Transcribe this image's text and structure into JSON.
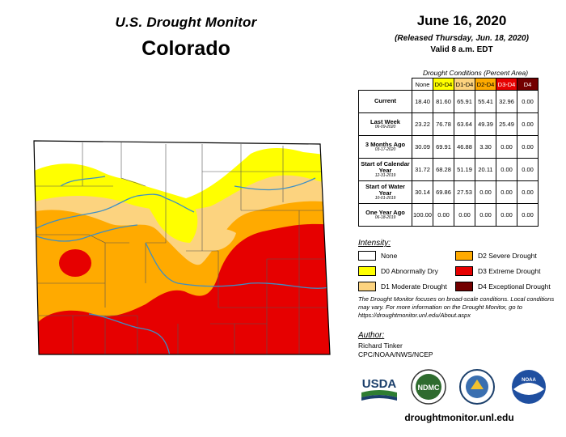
{
  "header": {
    "title": "U.S. Drought Monitor",
    "state": "Colorado",
    "map_date": "June 16, 2020",
    "released": "(Released Thursday, Jun. 18, 2020)",
    "valid": "Valid 8 a.m. EDT"
  },
  "table": {
    "caption": "Drought Conditions (Percent Area)",
    "columns": [
      "None",
      "D0-D4",
      "D1-D4",
      "D2-D4",
      "D3-D4",
      "D4"
    ],
    "column_colors": [
      "#ffffff",
      "#ffff00",
      "#fcd37f",
      "#ffaa00",
      "#e60000",
      "#730000"
    ],
    "rows": [
      {
        "label": "Current",
        "sub": "",
        "values": [
          "18.40",
          "81.60",
          "65.91",
          "55.41",
          "32.96",
          "0.00"
        ]
      },
      {
        "label": "Last Week",
        "sub": "06-09-2020",
        "values": [
          "23.22",
          "76.78",
          "63.64",
          "49.39",
          "25.49",
          "0.00"
        ]
      },
      {
        "label": "3 Months Ago",
        "sub": "03-17-2020",
        "values": [
          "30.09",
          "69.91",
          "46.88",
          "3.30",
          "0.00",
          "0.00"
        ]
      },
      {
        "label": "Start of Calendar Year",
        "sub": "12-31-2019",
        "values": [
          "31.72",
          "68.28",
          "51.19",
          "20.11",
          "0.00",
          "0.00"
        ]
      },
      {
        "label": "Start of Water Year",
        "sub": "10-01-2019",
        "values": [
          "30.14",
          "69.86",
          "27.53",
          "0.00",
          "0.00",
          "0.00"
        ]
      },
      {
        "label": "One Year Ago",
        "sub": "06-18-2019",
        "values": [
          "100.00",
          "0.00",
          "0.00",
          "0.00",
          "0.00",
          "0.00"
        ]
      }
    ]
  },
  "legend": {
    "title": "Intensity:",
    "items": [
      {
        "label": "None",
        "color": "#ffffff"
      },
      {
        "label": "D2 Severe Drought",
        "color": "#ffaa00"
      },
      {
        "label": "D0 Abnormally Dry",
        "color": "#ffff00"
      },
      {
        "label": "D3 Extreme Drought",
        "color": "#e60000"
      },
      {
        "label": "D1 Moderate Drought",
        "color": "#fcd37f"
      },
      {
        "label": "D4 Exceptional Drought",
        "color": "#730000"
      }
    ]
  },
  "note": "The Drought Monitor focuses on broad-scale conditions. Local conditions may vary. For more information on the Drought Monitor, go to https://droughtmonitor.unl.edu/About.aspx",
  "author": {
    "title": "Author:",
    "name": "Richard Tinker",
    "org": "CPC/NOAA/NWS/NCEP"
  },
  "logos": {
    "usda": "USDA",
    "ndmc": "NDMC",
    "noaa": "NOAA"
  },
  "site": "droughtmonitor.unl.edu",
  "colors": {
    "none": "#ffffff",
    "d0": "#ffff00",
    "d1": "#fcd37f",
    "d2": "#ffaa00",
    "d3": "#e60000",
    "d4": "#730000",
    "river": "#3c8fc6"
  }
}
